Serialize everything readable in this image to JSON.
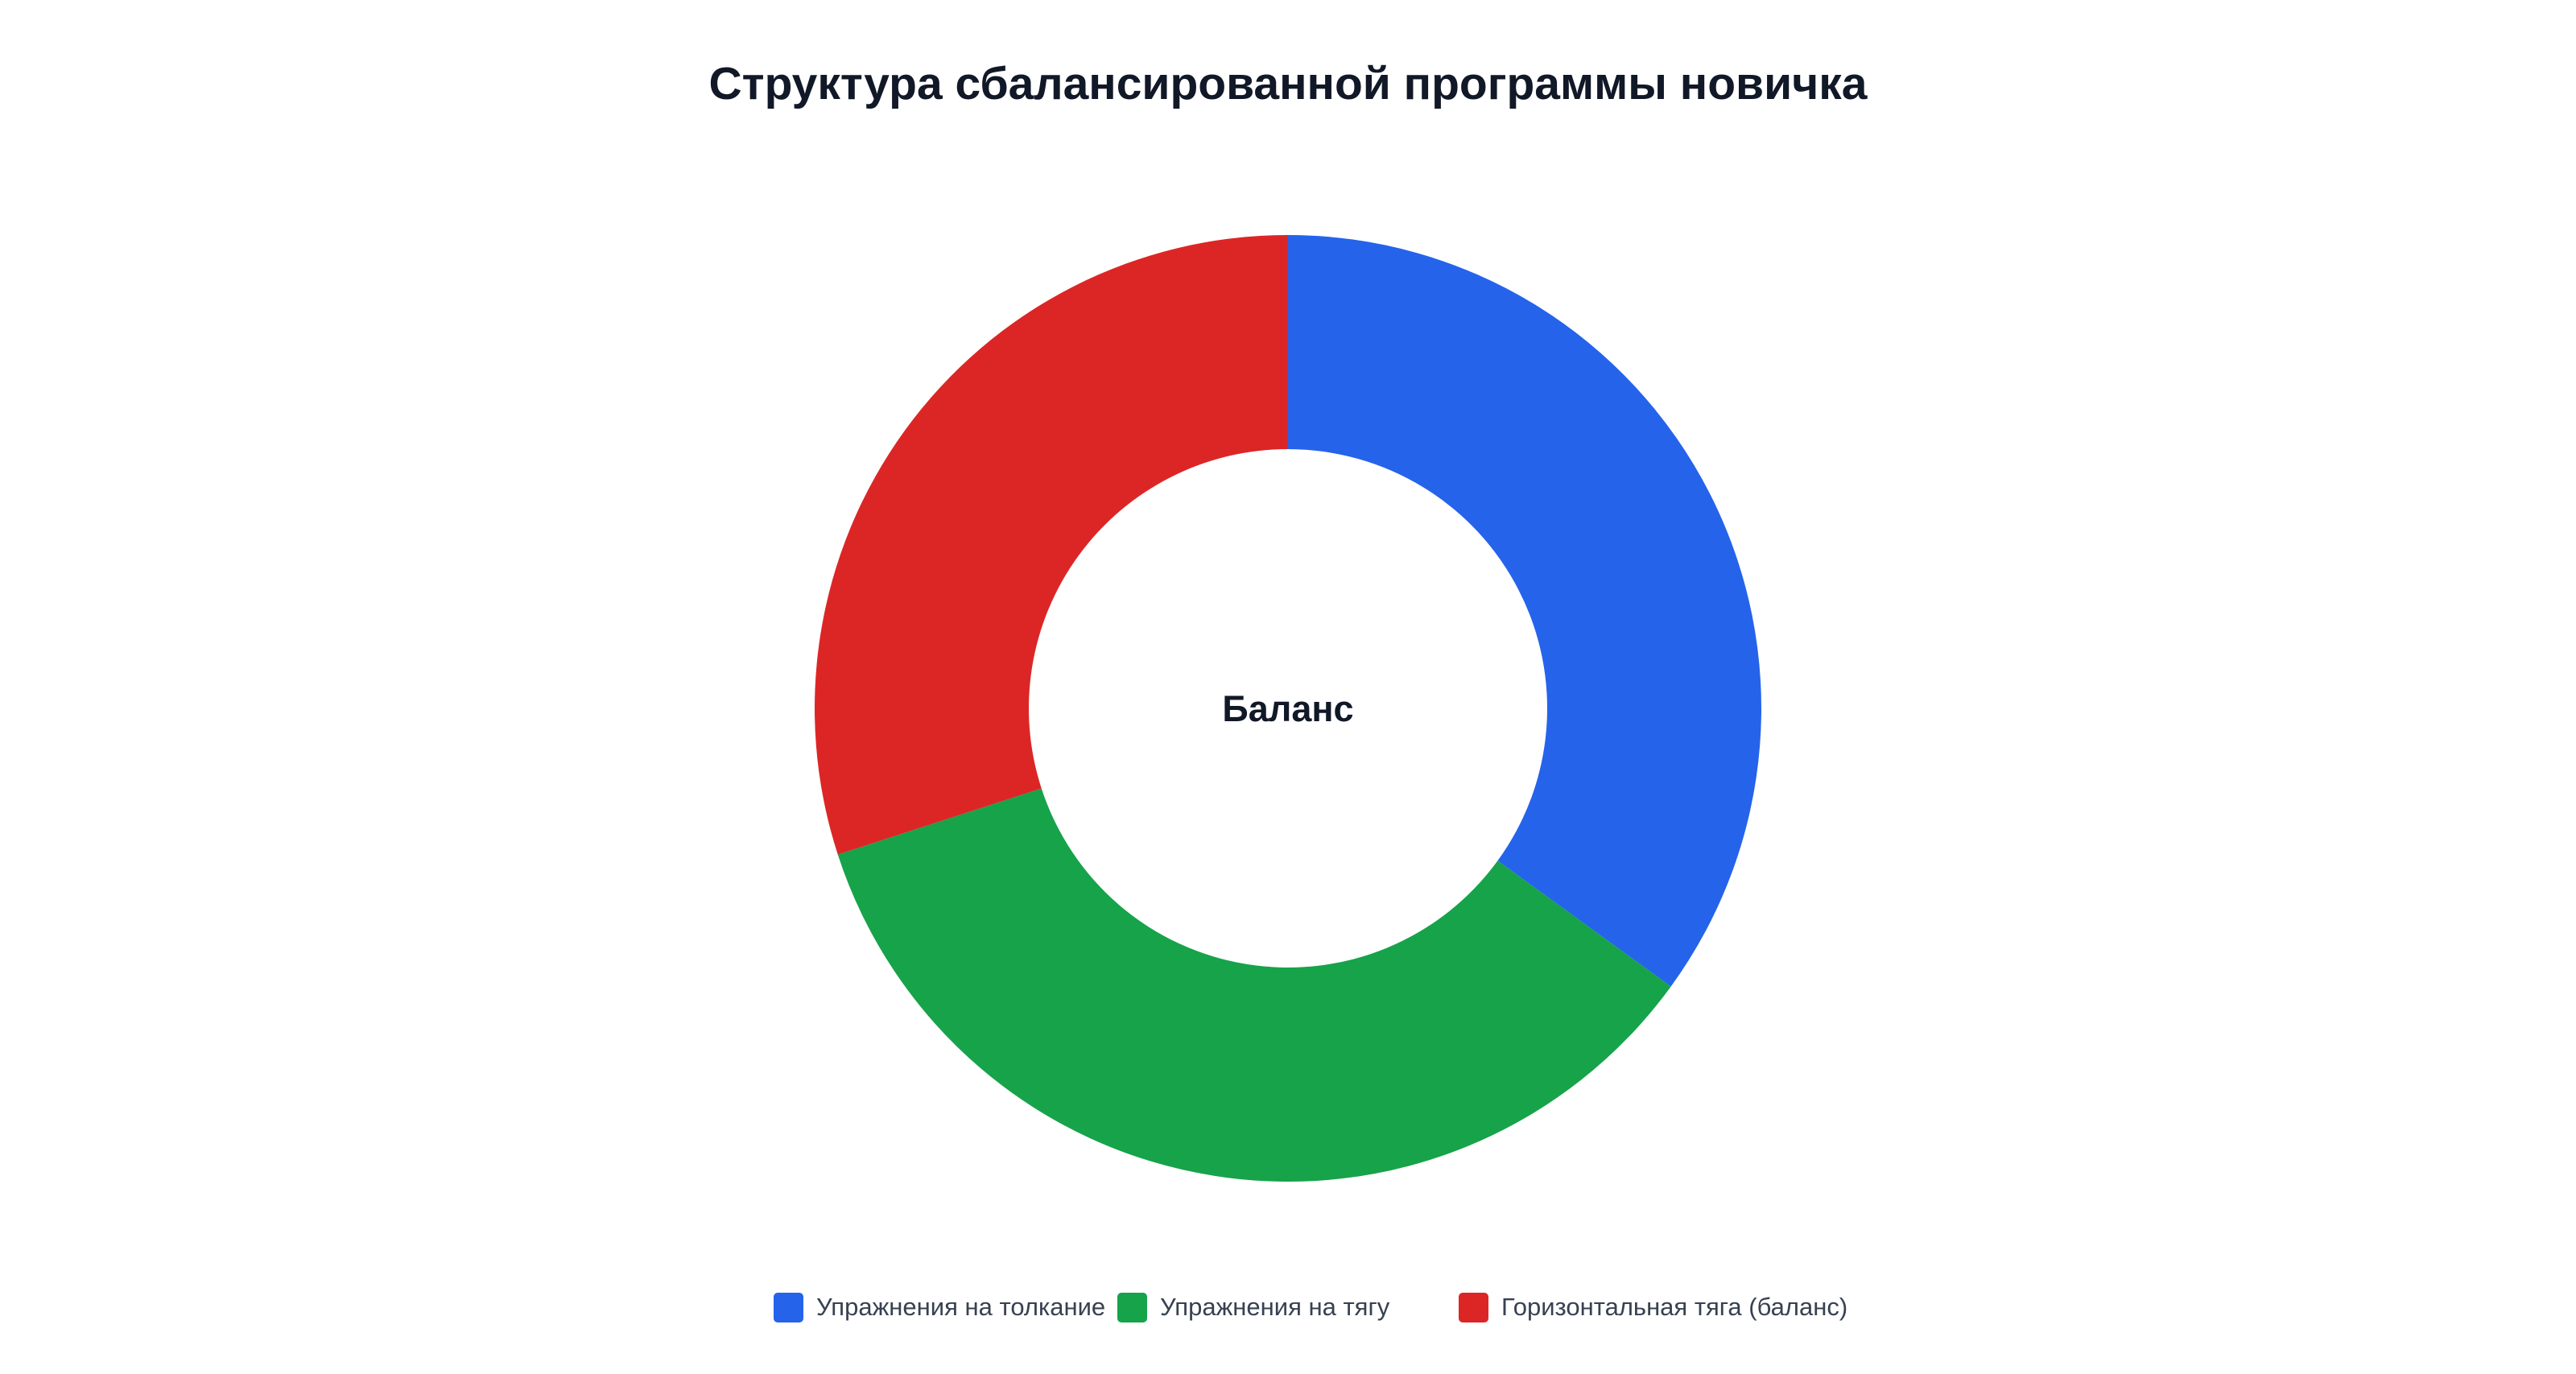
{
  "chart_data": {
    "type": "doughnut",
    "title": "Структура сбалансированной программы новичка",
    "center_label": "Баланс",
    "categories": [
      "Упражнения на толкание",
      "Упражнения на тягу",
      "Горизонтальная тяга (баланс)"
    ],
    "values": [
      35,
      35,
      30
    ],
    "colors": [
      "#2563eb",
      "#16a34a",
      "#dc2626"
    ],
    "legend": "bottom"
  }
}
